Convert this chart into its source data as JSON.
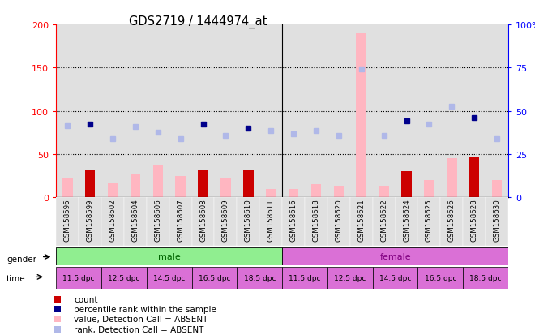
{
  "title": "GDS2719 / 1444974_at",
  "samples": [
    "GSM158596",
    "GSM158599",
    "GSM158602",
    "GSM158604",
    "GSM158606",
    "GSM158607",
    "GSM158608",
    "GSM158609",
    "GSM158610",
    "GSM158611",
    "GSM158616",
    "GSM158618",
    "GSM158620",
    "GSM158621",
    "GSM158622",
    "GSM158624",
    "GSM158625",
    "GSM158626",
    "GSM158628",
    "GSM158630"
  ],
  "values": [
    22,
    32,
    17,
    27,
    37,
    25,
    32,
    22,
    32,
    10,
    10,
    15,
    13,
    190,
    13,
    30,
    20,
    45,
    47,
    20
  ],
  "detection": [
    "A",
    "P",
    "A",
    "A",
    "A",
    "A",
    "P",
    "A",
    "P",
    "A",
    "A",
    "A",
    "A",
    "A",
    "A",
    "P",
    "A",
    "A",
    "P",
    "A"
  ],
  "ranks_left": [
    83,
    85,
    68,
    82,
    75,
    68,
    85,
    72,
    80,
    77,
    73,
    77,
    72,
    148,
    72,
    88,
    85,
    105,
    92,
    68
  ],
  "gender": [
    "male",
    "male",
    "male",
    "male",
    "male",
    "male",
    "male",
    "male",
    "male",
    "male",
    "female",
    "female",
    "female",
    "female",
    "female",
    "female",
    "female",
    "female",
    "female",
    "female"
  ],
  "time_labels": [
    "11.5 dpc",
    "12.5 dpc",
    "14.5 dpc",
    "16.5 dpc",
    "18.5 dpc",
    "11.5 dpc",
    "12.5 dpc",
    "14.5 dpc",
    "16.5 dpc",
    "18.5 dpc"
  ],
  "ylim_left": [
    0,
    200
  ],
  "ylim_right": [
    0,
    100
  ],
  "yticks_left": [
    0,
    50,
    100,
    150,
    200
  ],
  "yticks_right": [
    0,
    25,
    50,
    75,
    100
  ],
  "ytick_labels_right": [
    "0",
    "25",
    "50",
    "75",
    "100%"
  ],
  "male_color": "#90ee90",
  "female_color": "#da70d6",
  "absent_bar_color": "#ffb6c1",
  "present_bar_color": "#cc0000",
  "absent_rank_color": "#b0b8e8",
  "present_rank_color": "#00008b",
  "bg_col_color": "#e0e0e0",
  "n_male": 10,
  "n_female": 10
}
